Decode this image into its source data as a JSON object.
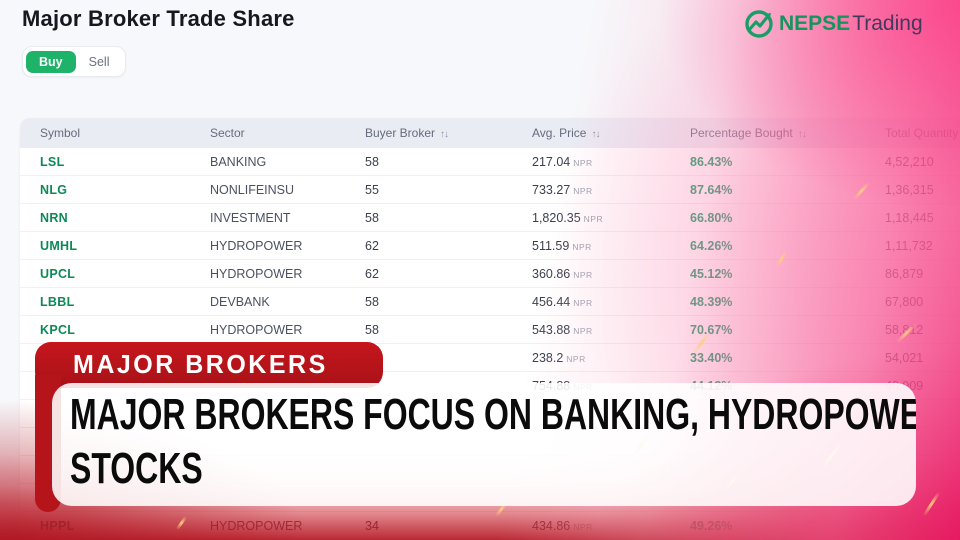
{
  "page": {
    "title": "Major Broker Trade Share"
  },
  "logo": {
    "primary": "NEPSE",
    "secondary": "Trading",
    "icon": "trend-up-circle-icon",
    "color": "#15945d"
  },
  "toggle": {
    "buy_label": "Buy",
    "sell_label": "Sell",
    "active": "Buy",
    "active_color": "#1fb269"
  },
  "table": {
    "columns": [
      {
        "key": "symbol",
        "label": "Symbol",
        "sortable": false
      },
      {
        "key": "sector",
        "label": "Sector",
        "sortable": false
      },
      {
        "key": "buyer-broker",
        "label": "Buyer Broker",
        "sortable": true
      },
      {
        "key": "avg-price",
        "label": "Avg. Price",
        "sortable": true
      },
      {
        "key": "percentage-bought",
        "label": "Percentage Bought",
        "sortable": true
      },
      {
        "key": "total-quantity-bought",
        "label": "Total Quantity Bought",
        "sortable": false
      }
    ],
    "sort_icon": "↑↓",
    "rows": [
      {
        "symbol": "LSL",
        "sector": "BANKING",
        "broker": "58",
        "price": "217.04",
        "currency": "NPR",
        "pct": "86.43%",
        "qty": "4,52,210"
      },
      {
        "symbol": "NLG",
        "sector": "NONLIFEINSU",
        "broker": "55",
        "price": "733.27",
        "currency": "NPR",
        "pct": "87.64%",
        "qty": "1,36,315"
      },
      {
        "symbol": "NRN",
        "sector": "INVESTMENT",
        "broker": "58",
        "price": "1,820.35",
        "currency": "NPR",
        "pct": "66.80%",
        "qty": "1,18,445"
      },
      {
        "symbol": "UMHL",
        "sector": "HYDROPOWER",
        "broker": "62",
        "price": "511.59",
        "currency": "NPR",
        "pct": "64.26%",
        "qty": "1,11,732"
      },
      {
        "symbol": "UPCL",
        "sector": "HYDROPOWER",
        "broker": "62",
        "price": "360.86",
        "currency": "NPR",
        "pct": "45.12%",
        "qty": "86,879"
      },
      {
        "symbol": "LBBL",
        "sector": "DEVBANK",
        "broker": "58",
        "price": "456.44",
        "currency": "NPR",
        "pct": "48.39%",
        "qty": "67,800"
      },
      {
        "symbol": "KPCL",
        "sector": "HYDROPOWER",
        "broker": "58",
        "price": "543.88",
        "currency": "NPR",
        "pct": "70.67%",
        "qty": "58,812"
      },
      {
        "symbol": "",
        "sector": "",
        "broker": "",
        "price": "238.2",
        "currency": "NPR",
        "pct": "33.40%",
        "qty": "54,021"
      },
      {
        "symbol": "",
        "sector": "",
        "broker": "",
        "price": "754.88",
        "currency": "NPR",
        "pct": "44.12%",
        "qty": "40,909"
      },
      {
        "symbol": "",
        "sector": "",
        "broker": "",
        "price": "",
        "currency": "",
        "pct": "",
        "qty": ""
      },
      {
        "symbol": "",
        "sector": "",
        "broker": "",
        "price": "",
        "currency": "",
        "pct": "",
        "qty": ""
      },
      {
        "symbol": "",
        "sector": "",
        "broker": "",
        "price": "",
        "currency": "",
        "pct": "",
        "qty": ""
      },
      {
        "symbol": "",
        "sector": "",
        "broker": "",
        "price": "",
        "currency": "",
        "pct": "",
        "qty": ""
      },
      {
        "symbol": "HPPL",
        "sector": "HYDROPOWER",
        "broker": "34",
        "price": "434.86",
        "currency": "NPR",
        "pct": "49.26%",
        "qty": ""
      }
    ]
  },
  "banner": {
    "tag": "MAJOR BROKERS",
    "headline_lines": [
      "MAJOR BROKERS FOCUS ON BANKING, HYDROPOWER, AND INSURANCE",
      "STOCKS"
    ],
    "tag_color": "#bf141c"
  },
  "colors": {
    "symbol_green": "#0c8a56",
    "pct_green": "#0c9a62",
    "buy_green": "#1fb269",
    "banner_red": "#bf141c",
    "overlay_pink": "#eb1969",
    "overlay_red": "#b2121e",
    "header_bg": "#eaecf4",
    "page_bg": "#f7f8fb"
  }
}
